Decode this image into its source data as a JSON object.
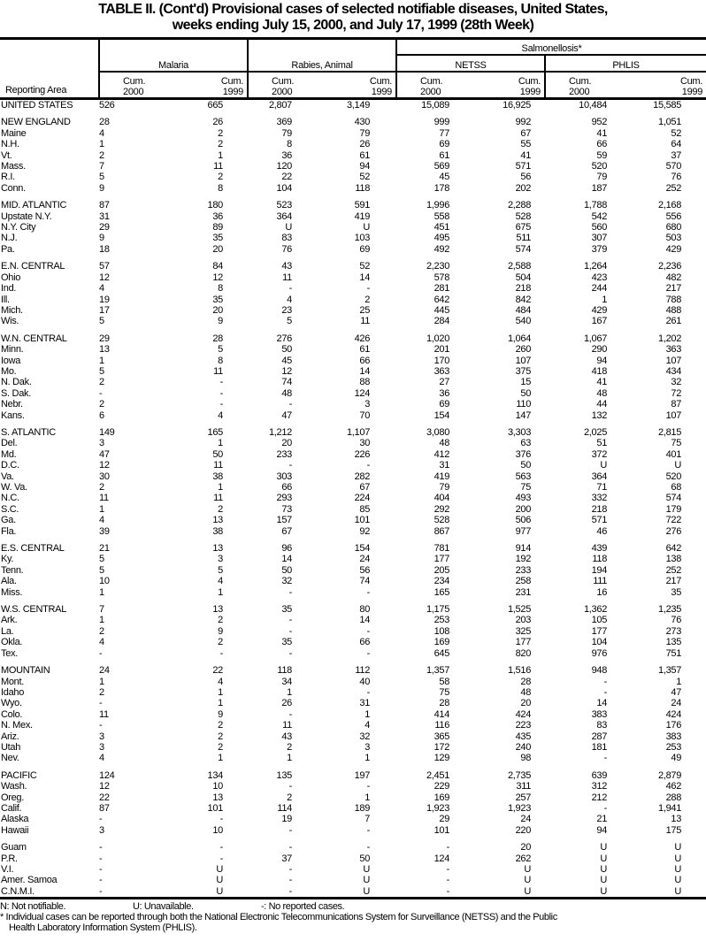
{
  "title": {
    "line1": "TABLE II. (Cont'd) Provisional cases of selected notifiable diseases, United States,",
    "line2": "weeks ending July 15, 2000, and July 17, 1999 (28th Week)"
  },
  "header": {
    "reporting_area": "Reporting Area",
    "malaria": "Malaria",
    "rabies": "Rabies, Animal",
    "salmonellosis": "Salmonellosis*",
    "netss": "NETSS",
    "phlis": "PHLIS",
    "cum2000": "Cum.\n2000",
    "cum1999": "Cum.\n1999",
    "cum": "Cum.",
    "y2000": "2000",
    "y1999": "1999"
  },
  "groups": [
    [
      [
        "UNITED STATES",
        "526",
        "665",
        "2,807",
        "3,149",
        "15,089",
        "16,925",
        "10,484",
        "15,585"
      ]
    ],
    [
      [
        "NEW ENGLAND",
        "28",
        "26",
        "369",
        "430",
        "999",
        "992",
        "952",
        "1,051"
      ],
      [
        "Maine",
        "4",
        "2",
        "79",
        "79",
        "77",
        "67",
        "41",
        "52"
      ],
      [
        "N.H.",
        "1",
        "2",
        "8",
        "26",
        "69",
        "55",
        "66",
        "64"
      ],
      [
        "Vt.",
        "2",
        "1",
        "36",
        "61",
        "61",
        "41",
        "59",
        "37"
      ],
      [
        "Mass.",
        "7",
        "11",
        "120",
        "94",
        "569",
        "571",
        "520",
        "570"
      ],
      [
        "R.I.",
        "5",
        "2",
        "22",
        "52",
        "45",
        "56",
        "79",
        "76"
      ],
      [
        "Conn.",
        "9",
        "8",
        "104",
        "118",
        "178",
        "202",
        "187",
        "252"
      ]
    ],
    [
      [
        "MID. ATLANTIC",
        "87",
        "180",
        "523",
        "591",
        "1,996",
        "2,288",
        "1,788",
        "2,168"
      ],
      [
        "Upstate N.Y.",
        "31",
        "36",
        "364",
        "419",
        "558",
        "528",
        "542",
        "556"
      ],
      [
        "N.Y. City",
        "29",
        "89",
        "U",
        "U",
        "451",
        "675",
        "560",
        "680"
      ],
      [
        "N.J.",
        "9",
        "35",
        "83",
        "103",
        "495",
        "511",
        "307",
        "503"
      ],
      [
        "Pa.",
        "18",
        "20",
        "76",
        "69",
        "492",
        "574",
        "379",
        "429"
      ]
    ],
    [
      [
        "E.N. CENTRAL",
        "57",
        "84",
        "43",
        "52",
        "2,230",
        "2,588",
        "1,264",
        "2,236"
      ],
      [
        "Ohio",
        "12",
        "12",
        "11",
        "14",
        "578",
        "504",
        "423",
        "482"
      ],
      [
        "Ind.",
        "4",
        "8",
        "-",
        "-",
        "281",
        "218",
        "244",
        "217"
      ],
      [
        "Ill.",
        "19",
        "35",
        "4",
        "2",
        "642",
        "842",
        "1",
        "788"
      ],
      [
        "Mich.",
        "17",
        "20",
        "23",
        "25",
        "445",
        "484",
        "429",
        "488"
      ],
      [
        "Wis.",
        "5",
        "9",
        "5",
        "11",
        "284",
        "540",
        "167",
        "261"
      ]
    ],
    [
      [
        "W.N. CENTRAL",
        "29",
        "28",
        "276",
        "426",
        "1,020",
        "1,064",
        "1,067",
        "1,202"
      ],
      [
        "Minn.",
        "13",
        "5",
        "50",
        "61",
        "201",
        "260",
        "290",
        "363"
      ],
      [
        "Iowa",
        "1",
        "8",
        "45",
        "66",
        "170",
        "107",
        "94",
        "107"
      ],
      [
        "Mo.",
        "5",
        "11",
        "12",
        "14",
        "363",
        "375",
        "418",
        "434"
      ],
      [
        "N. Dak.",
        "2",
        "-",
        "74",
        "88",
        "27",
        "15",
        "41",
        "32"
      ],
      [
        "S. Dak.",
        "-",
        "-",
        "48",
        "124",
        "36",
        "50",
        "48",
        "72"
      ],
      [
        "Nebr.",
        "2",
        "-",
        "-",
        "3",
        "69",
        "110",
        "44",
        "87"
      ],
      [
        "Kans.",
        "6",
        "4",
        "47",
        "70",
        "154",
        "147",
        "132",
        "107"
      ]
    ],
    [
      [
        "S. ATLANTIC",
        "149",
        "165",
        "1,212",
        "1,107",
        "3,080",
        "3,303",
        "2,025",
        "2,815"
      ],
      [
        "Del.",
        "3",
        "1",
        "20",
        "30",
        "48",
        "63",
        "51",
        "75"
      ],
      [
        "Md.",
        "47",
        "50",
        "233",
        "226",
        "412",
        "376",
        "372",
        "401"
      ],
      [
        "D.C.",
        "12",
        "11",
        "-",
        "-",
        "31",
        "50",
        "U",
        "U"
      ],
      [
        "Va.",
        "30",
        "38",
        "303",
        "282",
        "419",
        "563",
        "364",
        "520"
      ],
      [
        "W. Va.",
        "2",
        "1",
        "66",
        "67",
        "79",
        "75",
        "71",
        "68"
      ],
      [
        "N.C.",
        "11",
        "11",
        "293",
        "224",
        "404",
        "493",
        "332",
        "574"
      ],
      [
        "S.C.",
        "1",
        "2",
        "73",
        "85",
        "292",
        "200",
        "218",
        "179"
      ],
      [
        "Ga.",
        "4",
        "13",
        "157",
        "101",
        "528",
        "506",
        "571",
        "722"
      ],
      [
        "Fla.",
        "39",
        "38",
        "67",
        "92",
        "867",
        "977",
        "46",
        "276"
      ]
    ],
    [
      [
        "E.S. CENTRAL",
        "21",
        "13",
        "96",
        "154",
        "781",
        "914",
        "439",
        "642"
      ],
      [
        "Ky.",
        "5",
        "3",
        "14",
        "24",
        "177",
        "192",
        "118",
        "138"
      ],
      [
        "Tenn.",
        "5",
        "5",
        "50",
        "56",
        "205",
        "233",
        "194",
        "252"
      ],
      [
        "Ala.",
        "10",
        "4",
        "32",
        "74",
        "234",
        "258",
        "111",
        "217"
      ],
      [
        "Miss.",
        "1",
        "1",
        "-",
        "-",
        "165",
        "231",
        "16",
        "35"
      ]
    ],
    [
      [
        "W.S. CENTRAL",
        "7",
        "13",
        "35",
        "80",
        "1,175",
        "1,525",
        "1,362",
        "1,235"
      ],
      [
        "Ark.",
        "1",
        "2",
        "-",
        "14",
        "253",
        "203",
        "105",
        "76"
      ],
      [
        "La.",
        "2",
        "9",
        "-",
        "-",
        "108",
        "325",
        "177",
        "273"
      ],
      [
        "Okla.",
        "4",
        "2",
        "35",
        "66",
        "169",
        "177",
        "104",
        "135"
      ],
      [
        "Tex.",
        "-",
        "-",
        "-",
        "-",
        "645",
        "820",
        "976",
        "751"
      ]
    ],
    [
      [
        "MOUNTAIN",
        "24",
        "22",
        "118",
        "112",
        "1,357",
        "1,516",
        "948",
        "1,357"
      ],
      [
        "Mont.",
        "1",
        "4",
        "34",
        "40",
        "58",
        "28",
        "-",
        "1"
      ],
      [
        "Idaho",
        "2",
        "1",
        "1",
        "-",
        "75",
        "48",
        "-",
        "47"
      ],
      [
        "Wyo.",
        "-",
        "1",
        "26",
        "31",
        "28",
        "20",
        "14",
        "24"
      ],
      [
        "Colo.",
        "11",
        "9",
        "-",
        "1",
        "414",
        "424",
        "383",
        "424"
      ],
      [
        "N. Mex.",
        "-",
        "2",
        "11",
        "4",
        "116",
        "223",
        "83",
        "176"
      ],
      [
        "Ariz.",
        "3",
        "2",
        "43",
        "32",
        "365",
        "435",
        "287",
        "383"
      ],
      [
        "Utah",
        "3",
        "2",
        "2",
        "3",
        "172",
        "240",
        "181",
        "253"
      ],
      [
        "Nev.",
        "4",
        "1",
        "1",
        "1",
        "129",
        "98",
        "-",
        "49"
      ]
    ],
    [
      [
        "PACIFIC",
        "124",
        "134",
        "135",
        "197",
        "2,451",
        "2,735",
        "639",
        "2,879"
      ],
      [
        "Wash.",
        "12",
        "10",
        "-",
        "-",
        "229",
        "311",
        "312",
        "462"
      ],
      [
        "Oreg.",
        "22",
        "13",
        "2",
        "1",
        "169",
        "257",
        "212",
        "288"
      ],
      [
        "Calif.",
        "87",
        "101",
        "114",
        "189",
        "1,923",
        "1,923",
        "-",
        "1,941"
      ],
      [
        "Alaska",
        "-",
        "-",
        "19",
        "7",
        "29",
        "24",
        "21",
        "13"
      ],
      [
        "Hawaii",
        "3",
        "10",
        "-",
        "-",
        "101",
        "220",
        "94",
        "175"
      ]
    ],
    [
      [
        "Guam",
        "-",
        "-",
        "-",
        "-",
        "-",
        "20",
        "U",
        "U"
      ],
      [
        "P.R.",
        "-",
        "-",
        "37",
        "50",
        "124",
        "262",
        "U",
        "U"
      ],
      [
        "V.I.",
        "-",
        "U",
        "-",
        "U",
        "-",
        "U",
        "U",
        "U"
      ],
      [
        "Amer. Samoa",
        "-",
        "U",
        "-",
        "U",
        "-",
        "U",
        "U",
        "U"
      ],
      [
        "C.N.M.I.",
        "-",
        "U",
        "-",
        "U",
        "-",
        "U",
        "U",
        "U"
      ]
    ]
  ],
  "footnotes": {
    "n": "N: Not notifiable.",
    "u": "U: Unavailable.",
    "dash": "-: No reported cases.",
    "star_line1": "* Individual cases can be reported through both the National Electronic Telecommunications System for Surveillance (NETSS) and the Public",
    "star_line2": "Health Laboratory Information System (PHLIS)."
  }
}
